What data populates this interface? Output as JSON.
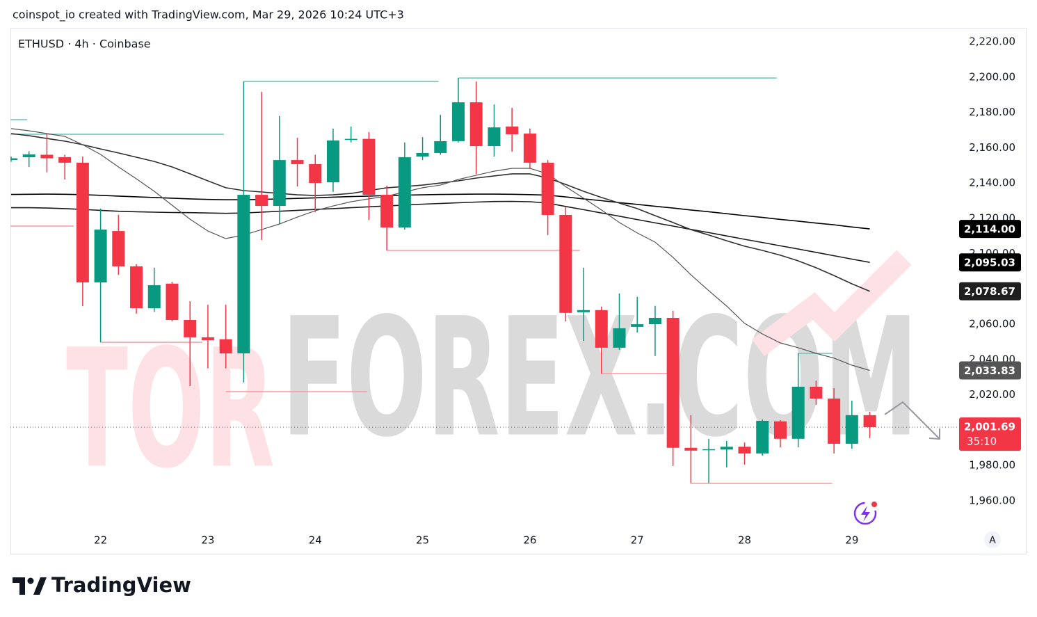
{
  "header": {
    "attribution": "coinspot_io created with TradingView.com, Mar 29, 2026 10:24 UTC+3"
  },
  "footer": {
    "brand": "TradingView"
  },
  "watermark": {
    "first": "TOR",
    "rest": "FOREX.COM"
  },
  "chart_data": {
    "type": "candlestick",
    "title": "ETHUSD · 4h · Coinbase",
    "categories": [
      null,
      null,
      null,
      null,
      null,
      "22",
      null,
      null,
      null,
      null,
      null,
      "23",
      null,
      null,
      null,
      null,
      null,
      "24",
      null,
      null,
      null,
      null,
      null,
      "25",
      null,
      null,
      null,
      null,
      null,
      "26",
      null,
      null,
      null,
      null,
      null,
      "27",
      null,
      null,
      null,
      null,
      null,
      "28",
      null,
      null,
      null,
      null,
      null,
      "29",
      null
    ],
    "open": [
      2153,
      2154.6,
      2156,
      2154.6,
      2151.5,
      2083.7,
      2112.8,
      2092.8,
      2069,
      2083,
      2062.4,
      2052.6,
      2051.5,
      2043.5,
      2133.3,
      2127,
      2153,
      2150.7,
      2140.4,
      2164.5,
      2165,
      2133.3,
      2114.8,
      2155,
      2157,
      2163.7,
      2185.7,
      2160.9,
      2172,
      2168,
      2151.5,
      2121.9,
      2066.8,
      2068,
      2046.7,
      2058.5,
      2060,
      2063.6,
      1990,
      1988.8,
      1989,
      1990.6,
      1986.8,
      2005,
      1995.1,
      2024.6,
      2017.9,
      1992.3,
      2008.5
    ],
    "high": [
      2155,
      2158,
      2168,
      2156,
      2155,
      2125.5,
      2122,
      2094,
      2092,
      2084,
      2073,
      2071,
      2071,
      2197.5,
      2191.6,
      2178,
      2165.6,
      2156,
      2170.8,
      2172,
      2168.8,
      2138.5,
      2163,
      2166,
      2178.6,
      2199.5,
      2197.5,
      2184.5,
      2182.6,
      2170.8,
      2153,
      2126.6,
      2092,
      2070,
      2077.4,
      2075.5,
      2070.4,
      2067.6,
      2008.5,
      1995,
      1993.9,
      1993,
      2006,
      2005.7,
      2043.5,
      2028,
      2023.8,
      2016.7,
      2010.4
    ],
    "low": [
      2152,
      2149,
      2146,
      2142,
      2070.3,
      2049.8,
      2088,
      2066,
      2067,
      2061.6,
      2025,
      2035,
      2035,
      2027,
      2107.7,
      2117,
      2138,
      2123.5,
      2135,
      2163,
      2119,
      2101.8,
      2113.6,
      2153,
      2156,
      2163,
      2145,
      2155,
      2157.8,
      2148,
      2110.5,
      2061.6,
      2050.6,
      2032,
      2045.5,
      2055.3,
      2042,
      1979.7,
      1969.9,
      1970,
      1978.9,
      1980.5,
      1985.6,
      1990.3,
      1990.3,
      2014.4,
      1986.8,
      1989.5,
      1995.5
    ],
    "close": [
      2154,
      2156.2,
      2154,
      2151.5,
      2083.7,
      2113.6,
      2092.8,
      2069.1,
      2082.1,
      2062.4,
      2052.6,
      2051,
      2043.5,
      2133.3,
      2127,
      2153,
      2150.7,
      2140,
      2164.1,
      2165,
      2133.3,
      2114.8,
      2154.6,
      2157,
      2163.7,
      2185.7,
      2160.9,
      2171.5,
      2167.6,
      2151.5,
      2121.9,
      2066.4,
      2068,
      2046.7,
      2057.7,
      2060,
      2063.6,
      1990,
      1988.4,
      1989.2,
      1990.6,
      1986.8,
      2005.3,
      1995.1,
      2024.6,
      2017.9,
      1992.3,
      2008.5,
      2001.69
    ],
    "up_color": "#089981",
    "down_color": "#f23645",
    "lines": [
      {
        "color": "#000000",
        "value_label": "2,114.00",
        "label_color": "#000000",
        "values": [
          2133.5,
          2133.6,
          2133.7,
          2133.6,
          2133.4,
          2133,
          2132.6,
          2132.2,
          2131.8,
          2131.4,
          2131,
          2130.7,
          2130.5,
          2130.5,
          2130.7,
          2131,
          2131.3,
          2131.6,
          2132,
          2132.3,
          2132.6,
          2132.9,
          2133.1,
          2133.3,
          2133.5,
          2133.6,
          2133.7,
          2133.7,
          2133.6,
          2133.4,
          2133.1,
          2132.1,
          2131,
          2130,
          2128.9,
          2127.9,
          2126.8,
          2125.8,
          2124.7,
          2123.7,
          2122.6,
          2121.5,
          2120.5,
          2119.4,
          2118.4,
          2117.3,
          2116.3,
          2115.1,
          2114
        ]
      },
      {
        "color": "#1a1a1a",
        "value_label": "2,095.03",
        "label_color": "#000000",
        "values": [
          2126,
          2126,
          2125.8,
          2125.5,
          2125,
          2124.5,
          2124,
          2123.7,
          2123.5,
          2123.3,
          2123.2,
          2123,
          2122.8,
          2123,
          2123.5,
          2124,
          2124.5,
          2125,
          2125.5,
          2126,
          2126.5,
          2127,
          2127.5,
          2128,
          2128.4,
          2128.8,
          2129.2,
          2129.5,
          2129.6,
          2129.4,
          2128.6,
          2126.7,
          2124.9,
          2123,
          2121.2,
          2119.3,
          2117.4,
          2115.6,
          2113.7,
          2111.9,
          2110,
          2108.1,
          2106.3,
          2104.4,
          2102.6,
          2100.7,
          2098.8,
          2096.9,
          2095.03
        ]
      },
      {
        "color": "#2e2e2e",
        "value_label": "2,078.67",
        "label_color": "#1f1f1f",
        "values": [
          2168,
          2166.8,
          2165.2,
          2163.7,
          2161.7,
          2159.3,
          2157,
          2154.6,
          2152.2,
          2149.1,
          2145.2,
          2141.2,
          2137.3,
          2135.7,
          2134.9,
          2134.1,
          2133.3,
          2132.9,
          2133.3,
          2134.1,
          2135.7,
          2137.3,
          2138,
          2138.8,
          2140,
          2141.2,
          2142.8,
          2144,
          2145.2,
          2145.2,
          2142.8,
          2139.2,
          2135.3,
          2131.8,
          2128.6,
          2125.5,
          2121.5,
          2117.6,
          2113.6,
          2110.5,
          2107.3,
          2104.2,
          2101.8,
          2099.1,
          2095.9,
          2092,
          2087.6,
          2082.9,
          2078.67
        ]
      },
      {
        "color": "#555555",
        "value_label": "2,033.83",
        "label_color": "#555555",
        "values": [
          2170.8,
          2169.6,
          2168,
          2166.4,
          2161.7,
          2156.2,
          2149.1,
          2142.4,
          2135.3,
          2127.4,
          2119.5,
          2112.8,
          2108.5,
          2110.5,
          2113.6,
          2116.8,
          2120.7,
          2124.3,
          2127,
          2129.4,
          2131,
          2132.5,
          2134.9,
          2137.3,
          2138.8,
          2142,
          2144.4,
          2146.7,
          2148.3,
          2148.3,
          2145.2,
          2138,
          2131.4,
          2124.7,
          2117.6,
          2111.7,
          2106.5,
          2097.9,
          2088,
          2079,
          2070.3,
          2060.5,
          2054.5,
          2049.4,
          2046.7,
          2043.5,
          2040.8,
          2036.8,
          2033.83
        ]
      }
    ],
    "levels": [
      {
        "value": 2175.9,
        "from": -0.6,
        "to": 0.9,
        "color": "#6cc3b8"
      },
      {
        "value": 2167.6,
        "from": -0.6,
        "to": 11.9,
        "color": "#6cc3b8"
      },
      {
        "value": 2197.5,
        "from": 13,
        "to": 23.9,
        "color": "#6cc3b8"
      },
      {
        "value": 2199.5,
        "from": 25,
        "to": 42.8,
        "color": "#6cc3b8"
      },
      {
        "value": 2043.5,
        "from": 44,
        "to": 45.9,
        "color": "#6cc3b8"
      },
      {
        "value": 2115.6,
        "from": -0.6,
        "to": 3.5,
        "color": "#f59aa2"
      },
      {
        "value": 2049.8,
        "from": 5,
        "to": 10.7,
        "color": "#f59aa2"
      },
      {
        "value": 2021.8,
        "from": 12,
        "to": 19.9,
        "color": "#f59aa2"
      },
      {
        "value": 2101.8,
        "from": 21,
        "to": 31.8,
        "color": "#f59aa2"
      },
      {
        "value": 2032.1,
        "from": 33,
        "to": 36.9,
        "color": "#f59aa2"
      },
      {
        "value": 1969.9,
        "from": 38,
        "to": 45.9,
        "color": "#f59aa2"
      }
    ],
    "price_line": {
      "value": 2001.69,
      "label": "2,001.69",
      "countdown": "35:10",
      "color": "#f23645"
    },
    "ylim": [
      1944.2,
      2227.9
    ],
    "yticks": [
      {
        "value": 1960,
        "label": "1,960.00"
      },
      {
        "value": 1980,
        "label": "1,980.00"
      },
      {
        "value": 2000,
        "label": "2,000.00"
      },
      {
        "value": 2020,
        "label": "2,020.00"
      },
      {
        "value": 2040,
        "label": "2,040.00"
      },
      {
        "value": 2060,
        "label": "2,060.00"
      },
      {
        "value": 2080,
        "label": "2,080.00"
      },
      {
        "value": 2100,
        "label": "2,100.00"
      },
      {
        "value": 2120,
        "label": "2,120.00"
      },
      {
        "value": 2140,
        "label": "2,140.00"
      },
      {
        "value": 2160,
        "label": "2,160.00"
      },
      {
        "value": 2180,
        "label": "2,180.00"
      },
      {
        "value": 2200,
        "label": "2,200.00"
      },
      {
        "value": 2220,
        "label": "2,220.00"
      }
    ],
    "auto_button": "A"
  }
}
